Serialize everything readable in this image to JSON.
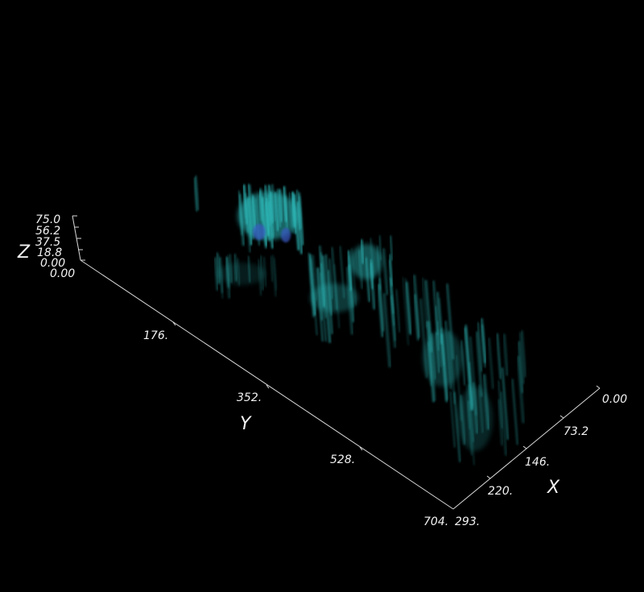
{
  "axes": {
    "x": {
      "title": "X",
      "ticks": [
        "0.00",
        "73.2",
        "146.",
        "220.",
        "293."
      ]
    },
    "y": {
      "title": "Y",
      "ticks": [
        "176.",
        "352.",
        "528.",
        "704."
      ]
    },
    "z": {
      "title": "Z",
      "ticks": [
        "0.00",
        "18.8",
        "37.5",
        "56.2",
        "75.0"
      ]
    }
  },
  "colors": {
    "background": "#000000",
    "axis": "#d9d9d9",
    "label": "#f2f2f2",
    "volume_primary": "#2fb8b8",
    "volume_highlight": "#3a5cc8"
  }
}
